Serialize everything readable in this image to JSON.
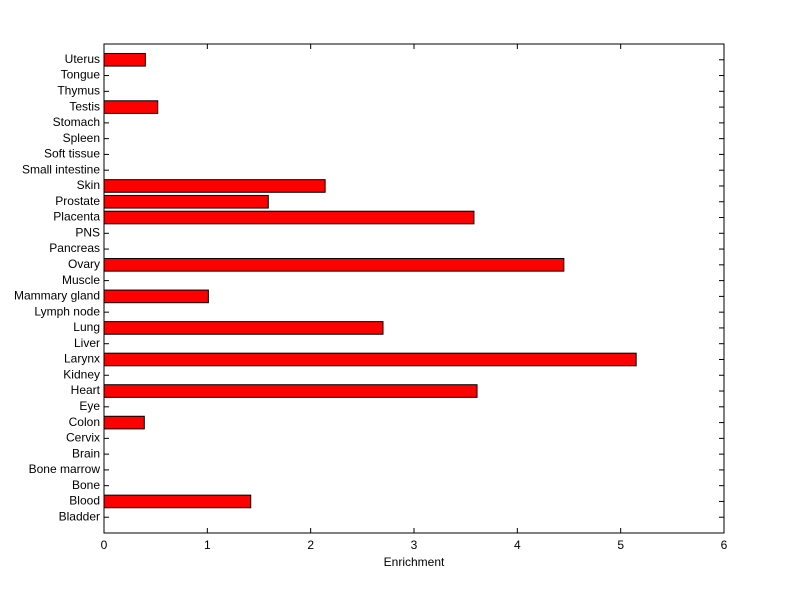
{
  "chart_data": {
    "type": "barh",
    "xlabel": "Enrichment",
    "categories": [
      "Bladder",
      "Blood",
      "Bone",
      "Bone marrow",
      "Brain",
      "Cervix",
      "Colon",
      "Eye",
      "Heart",
      "Kidney",
      "Larynx",
      "Liver",
      "Lung",
      "Lymph node",
      "Mammary gland",
      "Muscle",
      "Ovary",
      "Pancreas",
      "PNS",
      "Placenta",
      "Prostate",
      "Skin",
      "Small intestine",
      "Soft tissue",
      "Spleen",
      "Stomach",
      "Testis",
      "Thymus",
      "Tongue",
      "Uterus"
    ],
    "values": [
      0,
      1.42,
      0,
      0,
      0,
      0,
      0.39,
      0,
      3.61,
      0,
      5.15,
      0,
      2.7,
      0,
      1.01,
      0,
      4.45,
      0,
      0,
      3.58,
      1.59,
      2.14,
      0,
      0,
      0,
      0,
      0.52,
      0,
      0,
      0.4
    ],
    "color": "#ff0000",
    "xlim": [
      0,
      6
    ],
    "xticks": [
      0,
      1,
      2,
      3,
      4,
      5,
      6
    ]
  }
}
